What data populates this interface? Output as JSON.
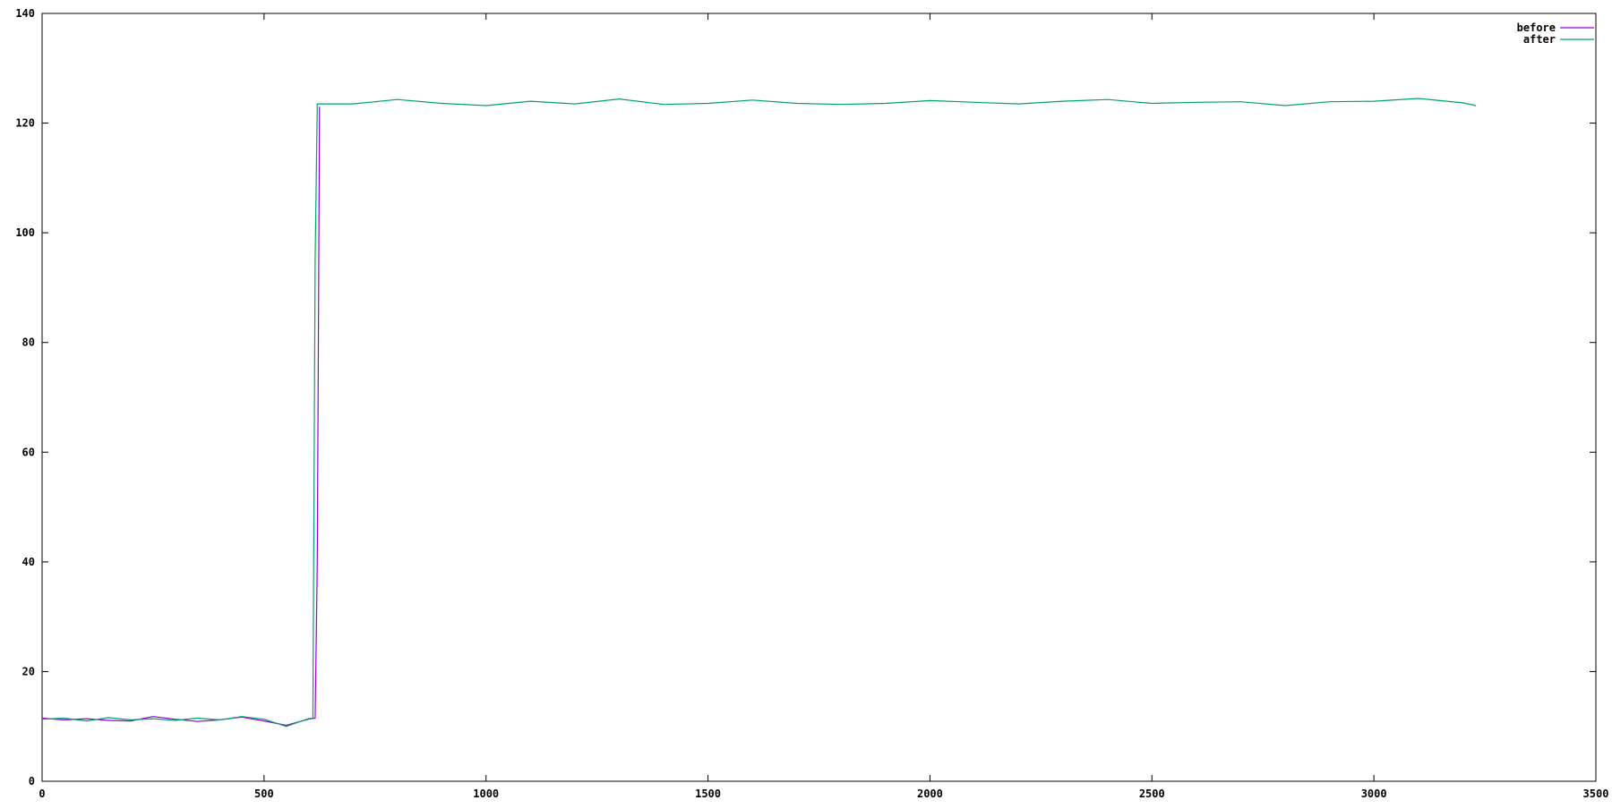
{
  "chart_data": {
    "type": "line",
    "title": "",
    "xlabel": "",
    "ylabel": "",
    "xlim": [
      0,
      3500
    ],
    "ylim": [
      0,
      140
    ],
    "x_ticks": [
      0,
      500,
      1000,
      1500,
      2000,
      2500,
      3000,
      3500
    ],
    "y_ticks": [
      0,
      20,
      40,
      60,
      80,
      100,
      120,
      140
    ],
    "x_tick_labels": [
      "0",
      "500",
      "1000",
      "1500",
      "2000",
      "2500",
      "3000",
      "3500"
    ],
    "y_tick_labels": [
      "0",
      "20",
      "40",
      "60",
      "80",
      "100",
      "120",
      "140"
    ],
    "grid": false,
    "legend_position": "top-right",
    "series": [
      {
        "name": "before",
        "color": "#9400d3",
        "x": [
          0,
          50,
          100,
          150,
          200,
          250,
          300,
          350,
          400,
          450,
          500,
          550,
          600,
          615,
          620,
          625
        ],
        "values": [
          11.5,
          11.2,
          11.4,
          11.1,
          11.0,
          11.8,
          11.3,
          10.9,
          11.2,
          11.7,
          11.0,
          10.2,
          11.3,
          11.5,
          40,
          123
        ]
      },
      {
        "name": "after",
        "color": "#009e73",
        "x": [
          0,
          50,
          100,
          150,
          200,
          250,
          300,
          350,
          400,
          450,
          500,
          550,
          600,
          610,
          615,
          620,
          700,
          800,
          900,
          1000,
          1100,
          1200,
          1300,
          1400,
          1500,
          1600,
          1700,
          1800,
          1900,
          2000,
          2100,
          2200,
          2300,
          2400,
          2500,
          2600,
          2700,
          2800,
          2900,
          3000,
          3100,
          3200,
          3230
        ],
        "values": [
          11.3,
          11.5,
          11.0,
          11.6,
          11.2,
          11.4,
          11.1,
          11.5,
          11.2,
          11.8,
          11.3,
          10.0,
          11.4,
          11.5,
          95,
          123.5,
          123.5,
          124.3,
          123.6,
          123.2,
          124.0,
          123.5,
          124.4,
          123.4,
          123.6,
          124.2,
          123.6,
          123.4,
          123.6,
          124.1,
          123.8,
          123.5,
          124.0,
          124.3,
          123.6,
          123.8,
          123.9,
          123.2,
          123.9,
          124.0,
          124.5,
          123.7,
          123.2
        ]
      }
    ]
  }
}
